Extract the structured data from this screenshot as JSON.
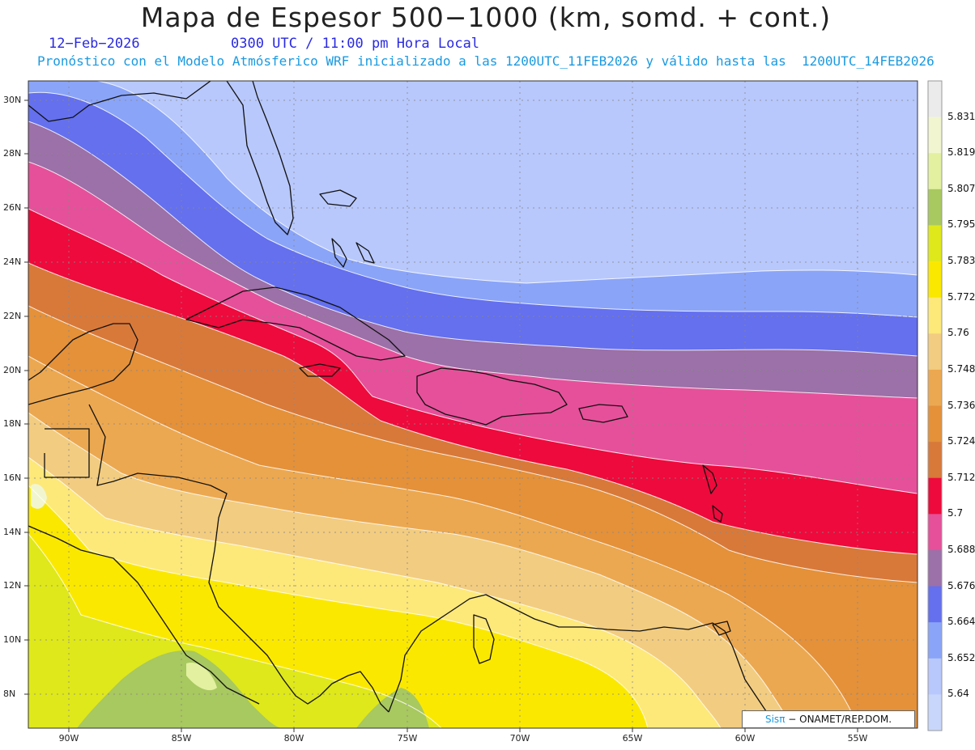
{
  "header": {
    "title": "Mapa de Espesor 500−1000 (km, somd. + cont.)",
    "date": "12−Feb−2026",
    "time": "0300 UTC / 11:00 pm Hora Local",
    "subtitle": "Pronóstico con el Modelo Atmósferico WRF inicializado a las 1200UTC_11FEB2026 y válido hasta las  1200UTC_14FEB2026"
  },
  "map": {
    "lat_labels": [
      "30N",
      "28N",
      "26N",
      "24N",
      "22N",
      "20N",
      "18N",
      "16N",
      "14N",
      "12N",
      "10N",
      "8N"
    ],
    "lon_labels": [
      "90W",
      "85W",
      "80W",
      "75W",
      "70W",
      "65W",
      "60W",
      "55W"
    ],
    "gridlines": true
  },
  "colorbar": {
    "labels": [
      "5.831",
      "5.819",
      "5.807",
      "5.795",
      "5.783",
      "5.772",
      "5.76",
      "5.748",
      "5.736",
      "5.724",
      "5.712",
      "5.7",
      "5.688",
      "5.676",
      "5.664",
      "5.652",
      "5.64"
    ],
    "colors": [
      "#ebebeb",
      "#f2f6d0",
      "#e2f0a0",
      "#a8c860",
      "#dfe81a",
      "#fbe800",
      "#fde87a",
      "#f2cc80",
      "#eca850",
      "#e4913a",
      "#d8793a",
      "#ee0a3c",
      "#e6509a",
      "#9c70a8",
      "#6470ee",
      "#8aa4f8",
      "#b8c8fc",
      "#c8d6fc"
    ]
  },
  "credit": {
    "sis": "Sisπ",
    "org": "− ONAMET/REP.DOM."
  }
}
